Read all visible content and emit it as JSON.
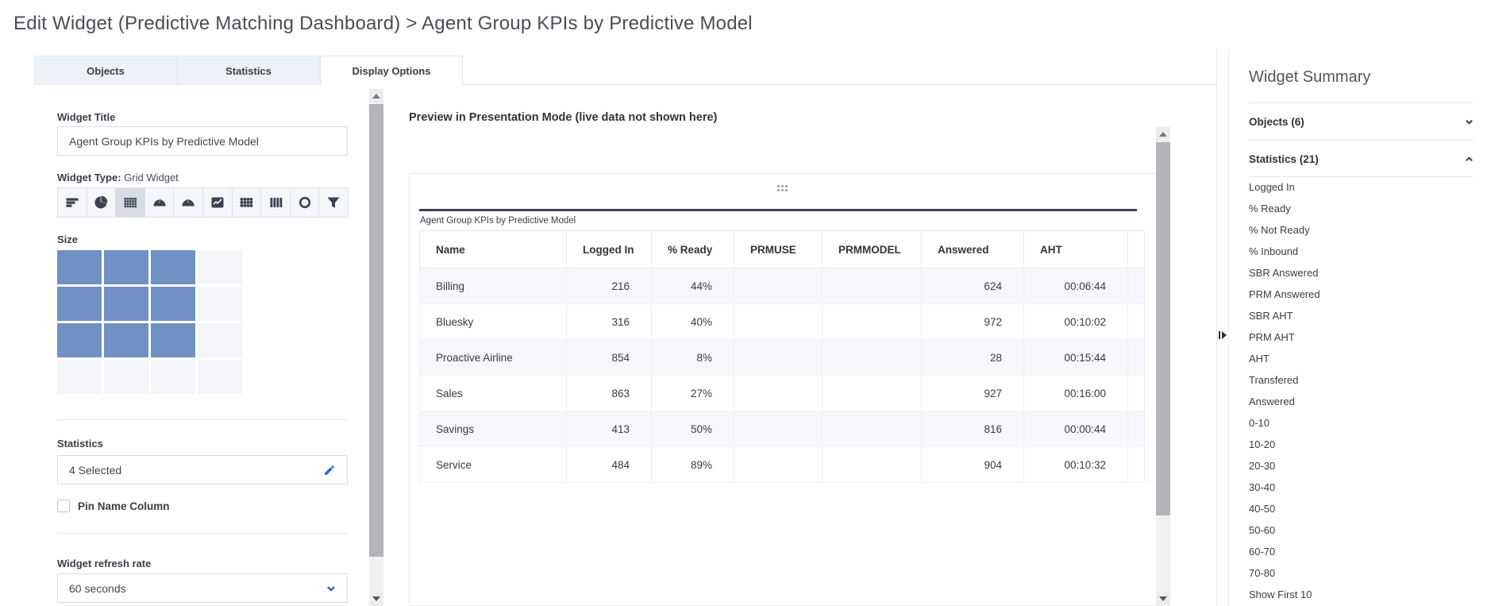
{
  "header": {
    "title": "Edit Widget (Predictive Matching Dashboard) > Agent Group KPIs by Predictive Model"
  },
  "tabs": [
    {
      "label": "Objects",
      "active": false
    },
    {
      "label": "Statistics",
      "active": false
    },
    {
      "label": "Display Options",
      "active": true
    }
  ],
  "left_panel": {
    "widget_title_label": "Widget Title",
    "widget_title_value": "Agent Group KPIs by Predictive Model",
    "widget_type_label": "Widget Type:",
    "widget_type_value": "Grid Widget",
    "widget_type_icons": [
      {
        "name": "text-list-icon",
        "selected": false
      },
      {
        "name": "pie-chart-icon",
        "selected": false
      },
      {
        "name": "grid-widget-icon",
        "selected": true
      },
      {
        "name": "gauge-icon",
        "selected": false
      },
      {
        "name": "gauge-alt-icon",
        "selected": false
      },
      {
        "name": "line-chart-icon",
        "selected": false
      },
      {
        "name": "dot-matrix-icon",
        "selected": false
      },
      {
        "name": "bar-columns-icon",
        "selected": false
      },
      {
        "name": "donut-icon",
        "selected": false
      },
      {
        "name": "funnel-icon",
        "selected": false
      }
    ],
    "size_label": "Size",
    "size_grid": {
      "rows": 4,
      "cols": 4,
      "selected_rows": 3,
      "selected_cols": 3
    },
    "statistics_label": "Statistics",
    "statistics_value": "4 Selected",
    "pin_name_column_label": "Pin Name Column",
    "pin_name_column_checked": false,
    "refresh_label": "Widget refresh rate",
    "refresh_value": "60 seconds"
  },
  "preview": {
    "heading": "Preview in Presentation Mode (live data not shown here)",
    "widget_title": "Agent Group KPIs by Predictive Model",
    "table": {
      "columns": [
        "Name",
        "Logged In",
        "% Ready",
        "PRMUSE",
        "PRMMODEL",
        "Answered",
        "AHT"
      ],
      "rows": [
        {
          "name": "Billing",
          "logged_in": "216",
          "ready": "44%",
          "prmuse": "",
          "prmmodel": "",
          "answered": "624",
          "aht": "00:06:44"
        },
        {
          "name": "Bluesky",
          "logged_in": "316",
          "ready": "40%",
          "prmuse": "",
          "prmmodel": "",
          "answered": "972",
          "aht": "00:10:02"
        },
        {
          "name": "Proactive Airline",
          "logged_in": "854",
          "ready": "8%",
          "prmuse": "",
          "prmmodel": "",
          "answered": "28",
          "aht": "00:15:44"
        },
        {
          "name": "Sales",
          "logged_in": "863",
          "ready": "27%",
          "prmuse": "",
          "prmmodel": "",
          "answered": "927",
          "aht": "00:16:00"
        },
        {
          "name": "Savings",
          "logged_in": "413",
          "ready": "50%",
          "prmuse": "",
          "prmmodel": "",
          "answered": "816",
          "aht": "00:00:44"
        },
        {
          "name": "Service",
          "logged_in": "484",
          "ready": "89%",
          "prmuse": "",
          "prmmodel": "",
          "answered": "904",
          "aht": "00:10:32"
        }
      ]
    }
  },
  "summary_panel": {
    "title": "Widget Summary",
    "sections": [
      {
        "label": "Objects (6)",
        "expanded": false
      },
      {
        "label": "Statistics (21)",
        "expanded": true
      }
    ],
    "statistics_items": [
      "Logged In",
      "% Ready",
      "% Not Ready",
      "% Inbound",
      "SBR Answered",
      "PRM Answered",
      "SBR AHT",
      "PRM AHT",
      "AHT",
      "Transfered",
      "Answered",
      "0-10",
      "10-20",
      "20-30",
      "30-40",
      "40-50",
      "50-60",
      "60-70",
      "70-80",
      "Show First 10"
    ]
  },
  "colors": {
    "accent_blue": "#2f62d8",
    "size_selected_blue": "#7191c5",
    "tab_inactive_bg": "#edf2f9",
    "row_stripe": "#f5f7fb",
    "widget_accent_line": "#3b4150"
  }
}
